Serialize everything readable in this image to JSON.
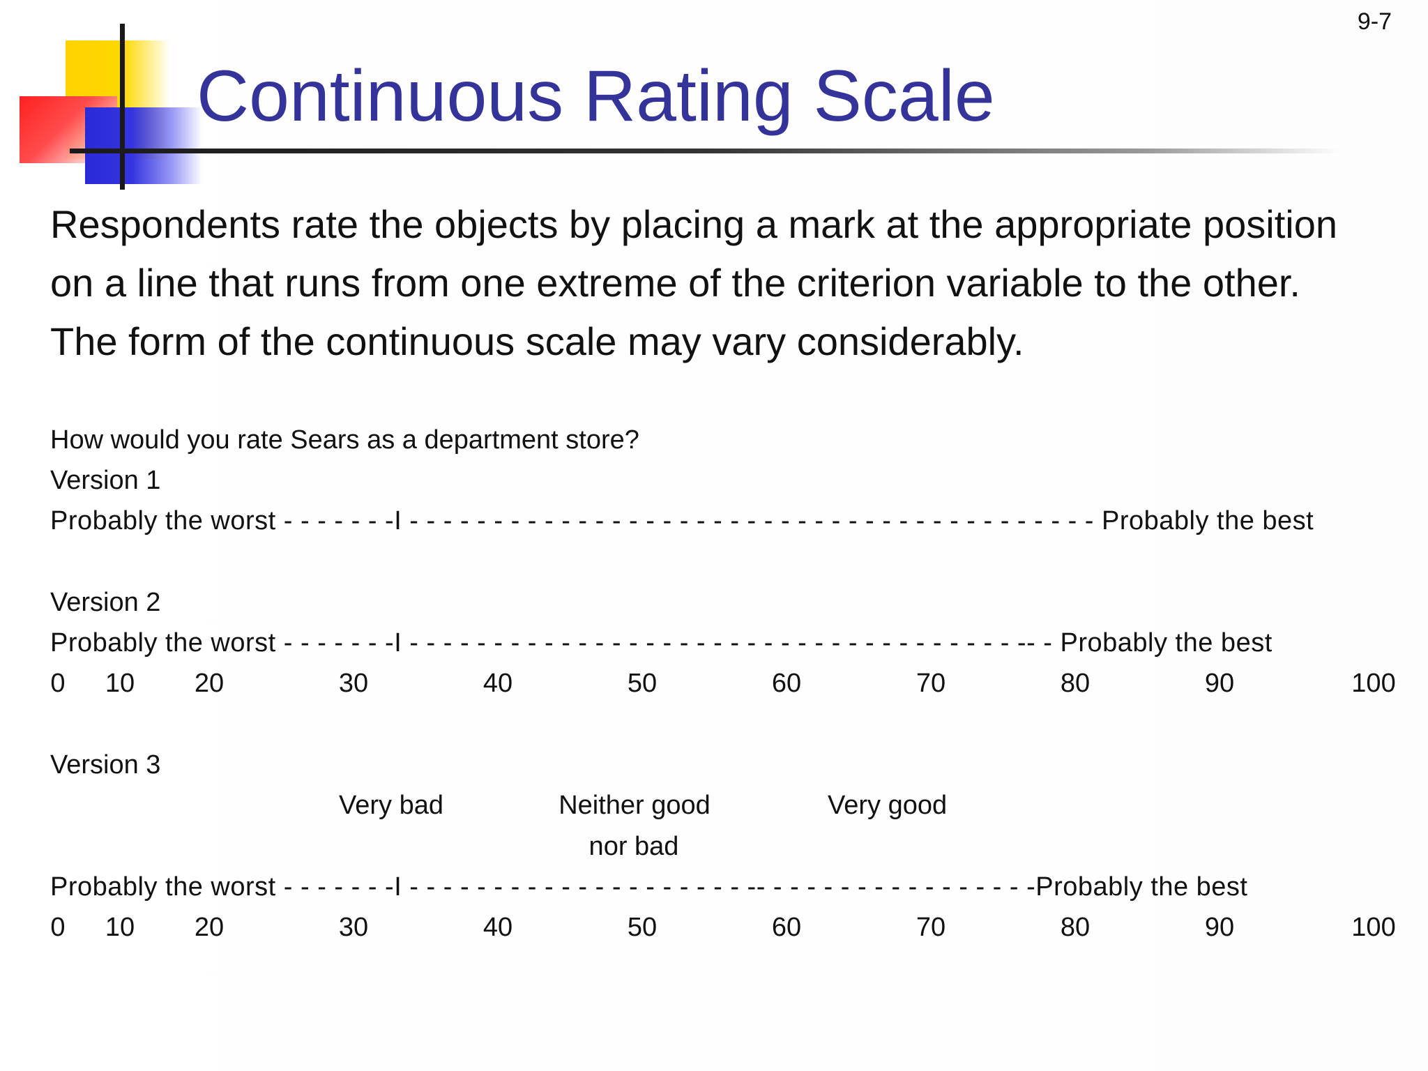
{
  "page_number": "9-7",
  "title": "Continuous Rating Scale",
  "body_lines": [
    "Respondents rate the objects by placing a mark at the appropriate position",
    "on a line that runs from one extreme of the criterion variable to the other.",
    "The form of the continuous scale may vary considerably."
  ],
  "question": "How would you rate Sears as a department store?",
  "version1": {
    "label": "Version 1",
    "scale_line": "Probably the worst - - - - - - -I - - - - - - - - - - - - - - - - - - - - - - - - - - - - - - - - - - - - - - - - - Probably the best"
  },
  "version2": {
    "label": "Version 2",
    "scale_line": "Probably the worst - - - - - - -I - - - - - - - - - - - - - - - - - - - - - - - - - - -  - - - - - - - - - -- - Probably the best",
    "ticks": [
      "0",
      "10",
      "20",
      "30",
      "40",
      "50",
      "60",
      "70",
      "80",
      "90",
      "100"
    ]
  },
  "version3": {
    "label": "Version 3",
    "anchor_very_bad": "Very bad",
    "anchor_neither_line1": "Neither good",
    "anchor_neither_line2": "nor bad",
    "anchor_very_good": "Very good",
    "scale_line": "Probably the worst - - - - - - -I - - - - - - - - - - - - -  - - - - - - - -- - - - - - - - - - - - - - - - -Probably the best",
    "ticks": [
      "0",
      "10",
      "20",
      "30",
      "40",
      "50",
      "60",
      "70",
      "80",
      "90",
      "100"
    ]
  }
}
